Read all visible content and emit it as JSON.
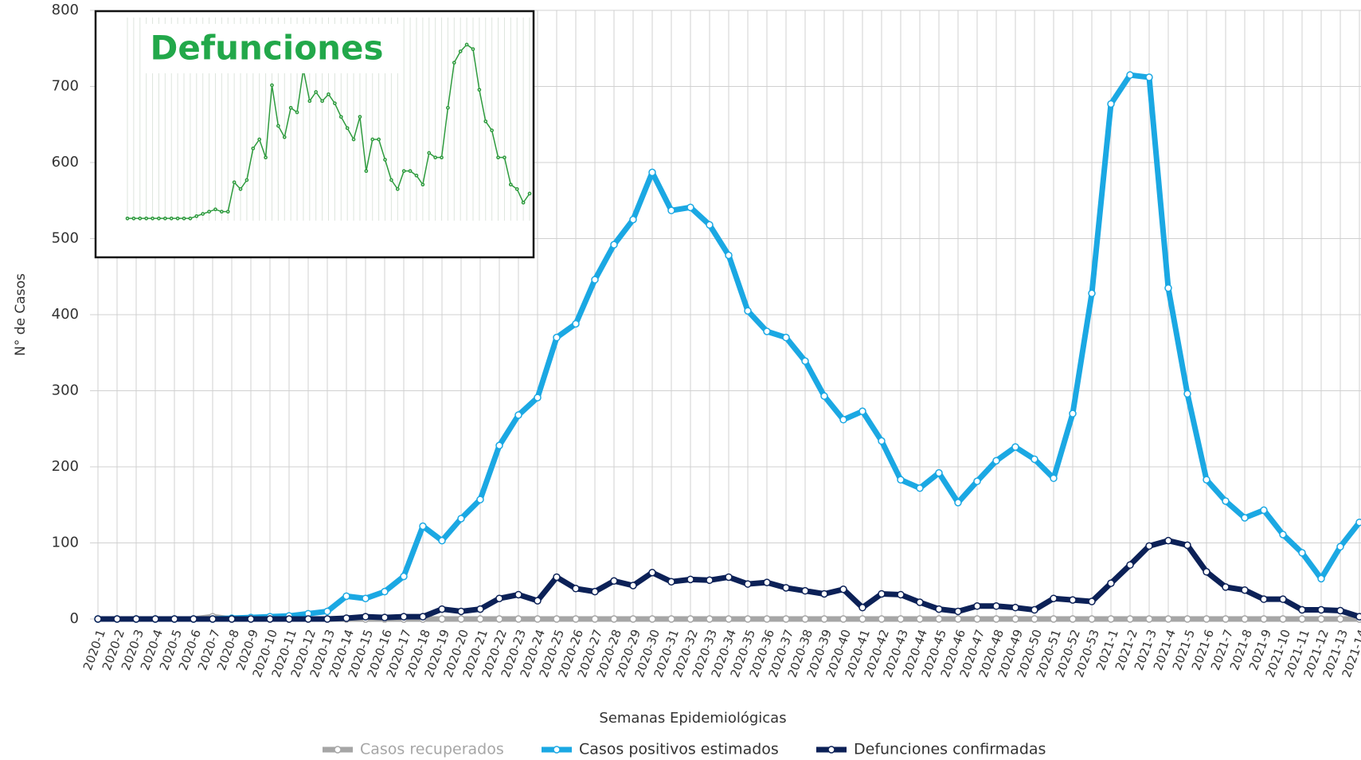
{
  "chart_data": [
    {
      "type": "line",
      "y_label": "N° de Casos",
      "x_label": "Semanas Epidemiológicas",
      "categories": [
        "2020-1",
        "2020-2",
        "2020-3",
        "2020-4",
        "2020-5",
        "2020-6",
        "2020-7",
        "2020-8",
        "2020-9",
        "2020-10",
        "2020-11",
        "2020-12",
        "2020-13",
        "2020-14",
        "2020-15",
        "2020-16",
        "2020-17",
        "2020-18",
        "2020-19",
        "2020-20",
        "2020-21",
        "2020-22",
        "2020-23",
        "2020-24",
        "2020-25",
        "2020-26",
        "2020-27",
        "2020-28",
        "2020-29",
        "2020-30",
        "2020-31",
        "2020-32",
        "2020-33",
        "2020-34",
        "2020-35",
        "2020-36",
        "2020-37",
        "2020-38",
        "2020-39",
        "2020-40",
        "2020-41",
        "2020-42",
        "2020-43",
        "2020-44",
        "2020-45",
        "2020-46",
        "2020-47",
        "2020-48",
        "2020-49",
        "2020-50",
        "2020-51",
        "2020-52",
        "2020-53",
        "2021-1",
        "2021-2",
        "2021-3",
        "2021-4",
        "2021-5",
        "2021-6",
        "2021-7",
        "2021-8",
        "2021-9",
        "2021-10",
        "2021-11",
        "2021-12",
        "2021-13",
        "2021-14"
      ],
      "series": [
        {
          "name": "Casos recuperados",
          "color": "#a6a6a6",
          "values": [
            0,
            0,
            0,
            0,
            0,
            0,
            3,
            0,
            0,
            0,
            0,
            0,
            0,
            0,
            0,
            0,
            0,
            0,
            0,
            0,
            0,
            0,
            0,
            0,
            0,
            0,
            0,
            0,
            0,
            0,
            0,
            0,
            0,
            0,
            0,
            0,
            0,
            0,
            0,
            0,
            0,
            0,
            0,
            0,
            0,
            0,
            0,
            0,
            0,
            0,
            0,
            0,
            0,
            0,
            0,
            0,
            0,
            0,
            0,
            0,
            0,
            0,
            0,
            0,
            0,
            0,
            0
          ]
        },
        {
          "name": "Casos positivos estimados",
          "color": "#1ba8e3",
          "values": [
            0,
            0,
            0,
            0,
            0,
            0,
            0,
            1,
            2,
            3,
            4,
            7,
            10,
            30,
            27,
            36,
            56,
            122,
            103,
            132,
            157,
            228,
            268,
            291,
            370,
            388,
            446,
            492,
            525,
            587,
            537,
            541,
            518,
            478,
            405,
            378,
            370,
            339,
            293,
            262,
            273,
            234,
            183,
            172,
            192,
            153,
            181,
            208,
            226,
            210,
            185,
            270,
            428,
            677,
            715,
            712,
            435,
            296,
            183,
            155,
            133,
            143,
            111,
            87,
            53,
            95,
            127
          ]
        },
        {
          "name": "Defunciones confirmadas",
          "color": "#0c2157",
          "values": [
            0,
            0,
            0,
            0,
            0,
            0,
            0,
            0,
            0,
            0,
            0,
            0,
            0,
            1,
            3,
            2,
            3,
            3,
            13,
            10,
            13,
            27,
            32,
            24,
            55,
            40,
            36,
            50,
            44,
            61,
            49,
            52,
            51,
            55,
            46,
            48,
            41,
            37,
            33,
            39,
            15,
            33,
            32,
            22,
            13,
            10,
            17,
            17,
            15,
            12,
            27,
            25,
            23,
            47,
            71,
            96,
            103,
            97,
            62,
            42,
            38,
            26,
            26,
            12,
            12,
            11,
            3
          ]
        }
      ],
      "ylim": [
        0,
        800
      ],
      "yticks": [
        0,
        100,
        200,
        300,
        400,
        500,
        600,
        700,
        800
      ],
      "grid": true,
      "legend": "bottom"
    },
    {
      "type": "line",
      "title": "Defunciones",
      "color": "#2e9b3e",
      "values": [
        1,
        1,
        1,
        1,
        1,
        1,
        1,
        1,
        1,
        1,
        1,
        2,
        3,
        4,
        5,
        4,
        4,
        17,
        14,
        18,
        32,
        36,
        28,
        60,
        42,
        37,
        50,
        48,
        67,
        53,
        57,
        53,
        56,
        52,
        46,
        41,
        36,
        46,
        22,
        36,
        36,
        27,
        18,
        14,
        22,
        22,
        20,
        16,
        30,
        28,
        28,
        50,
        70,
        75,
        78,
        76,
        58,
        44,
        40,
        28,
        28,
        16,
        14,
        8,
        12
      ],
      "ylim": [
        0,
        90
      ],
      "grid": true
    }
  ]
}
